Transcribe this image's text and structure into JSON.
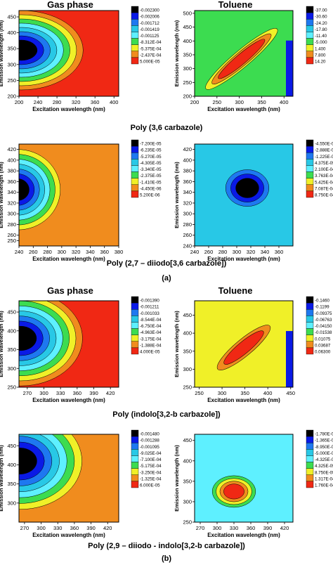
{
  "figure": {
    "headers": {
      "gas": "Gas phase",
      "toluene": "Toluene"
    },
    "captions": [
      "Poly (3,6 carbazole)",
      "Poly (2,7 – diiodo[3,6 carbazole])",
      "Poly (indolo[3,2-b carbazole])",
      "Poly (2,9 – diiodo - indolo[3,2-b carbazole])"
    ],
    "part_labels": [
      "(a)",
      "(b)"
    ],
    "xlabel": "Excitation wavelength (nm)",
    "ylabel": "Emission wavelength (nm)"
  },
  "chart_data": [
    {
      "type": "heatmap",
      "panel": "Poly (3,6 carbazole) – Gas phase",
      "xlabel": "Excitation wavelength (nm)",
      "ylabel": "Emission wavelength (nm)",
      "xlim": [
        200,
        410
      ],
      "ylim": [
        200,
        470
      ],
      "xticks": [
        200,
        240,
        280,
        320,
        360,
        400
      ],
      "yticks": [
        200,
        250,
        300,
        350,
        400,
        450
      ],
      "colorbar_levels": [
        "-0.002300",
        "-0.002006",
        "-0.001712",
        "-0.001419",
        "-0.001125",
        "-8.312E-04",
        "-5.375E-04",
        "-2.437E-04",
        "5.000E-05"
      ],
      "background_level": "5.000E-05",
      "feature": {
        "kind": "left-lobe",
        "center": [
          205,
          345
        ],
        "rx": 130,
        "ry": 125,
        "min_level": "-0.002300"
      }
    },
    {
      "type": "heatmap",
      "panel": "Poly (3,6 carbazole) – Toluene",
      "xlabel": "Excitation wavelength (nm)",
      "ylabel": "Emission wavelength (nm)",
      "xlim": [
        200,
        420
      ],
      "ylim": [
        200,
        510
      ],
      "xticks": [
        200,
        250,
        300,
        350,
        400
      ],
      "yticks": [
        200,
        250,
        300,
        350,
        400,
        450,
        500
      ],
      "colorbar_levels": [
        "-37.00",
        "-30.60",
        "-24.20",
        "-17.80",
        "-11.40",
        "-5.000",
        "1.400",
        "7.800",
        "14.20"
      ],
      "background_level": "-5.000",
      "feature": {
        "kind": "diagonal-ridge",
        "from": [
          235,
          240
        ],
        "to": [
          375,
          430
        ],
        "peak_level": "14.20"
      }
    },
    {
      "type": "heatmap",
      "panel": "Poly (2,7 – diiodo[3,6 carbazole]) – Gas phase",
      "xlabel": "Excitation wavelength (nm)",
      "ylabel": "Emission wavelength (nm)",
      "xlim": [
        240,
        380
      ],
      "ylim": [
        240,
        430
      ],
      "xticks": [
        240,
        260,
        280,
        300,
        320,
        340,
        360,
        380
      ],
      "yticks": [
        250,
        260,
        280,
        300,
        320,
        340,
        360,
        380,
        400,
        420
      ],
      "colorbar_levels": [
        "-7.200E-05",
        "-6.235E-05",
        "-5.270E-05",
        "-4.305E-05",
        "-3.340E-05",
        "-2.375E-05",
        "-1.410E-05",
        "-4.450E-06",
        "5.200E-06"
      ],
      "background_level": "-4.450E-06",
      "feature": {
        "kind": "left-lobe",
        "center": [
          238,
          345
        ],
        "rx": 60,
        "ry": 75,
        "min_level": "-7.200E-05"
      }
    },
    {
      "type": "heatmap",
      "panel": "Poly (2,7 – diiodo[3,6 carbazole]) – Toluene",
      "xlabel": "Excitation wavelength (nm)",
      "ylabel": "Emission wavelength (nm)",
      "xlim": [
        240,
        380
      ],
      "ylim": [
        240,
        430
      ],
      "xticks": [
        240,
        260,
        280,
        300,
        320,
        340,
        360
      ],
      "yticks": [
        240,
        260,
        280,
        300,
        320,
        340,
        360,
        380,
        400,
        420
      ],
      "colorbar_levels": [
        "-4.550E-04",
        "-2.888E-04",
        "-1.225E-04",
        "4.375E-05",
        "2.100E-04",
        "3.763E-04",
        "5.425E-04",
        "7.087E-04",
        "8.750E-04"
      ],
      "background_level": "4.375E-05",
      "feature": {
        "kind": "pocket",
        "center": [
          315,
          348
        ],
        "min_level": "-4.550E-04"
      }
    },
    {
      "type": "heatmap",
      "panel": "Poly (indolo[3,2-b carbazole]) – Gas phase",
      "xlabel": "Excitation wavelength (nm)",
      "ylabel": "Emission wavelength (nm)",
      "xlim": [
        255,
        435
      ],
      "ylim": [
        250,
        480
      ],
      "xticks": [
        270,
        300,
        330,
        360,
        390,
        420
      ],
      "yticks": [
        250,
        300,
        350,
        400,
        450
      ],
      "colorbar_levels": [
        "-0.001390",
        "-0.001211",
        "-0.001033",
        "-8.544E-04",
        "-6.750E-04",
        "-4.963E-04",
        "-3.175E-04",
        "-1.388E-04",
        "4.000E-05"
      ],
      "background_level": "4.000E-05",
      "feature": {
        "kind": "left-lobe",
        "center": [
          258,
          380
        ],
        "min_level": "-0.001390"
      }
    },
    {
      "type": "heatmap",
      "panel": "Poly (indolo[3,2-b carbazole]) – Toluene",
      "xlabel": "Excitation wavelength (nm)",
      "ylabel": "Emission wavelength (nm)",
      "xlim": [
        240,
        455
      ],
      "ylim": [
        250,
        490
      ],
      "xticks": [
        250,
        300,
        350,
        400,
        450
      ],
      "yticks": [
        250,
        300,
        350,
        400,
        450
      ],
      "colorbar_levels": [
        "-0.1460",
        "-0.1199",
        "-0.09375",
        "-0.06763",
        "-0.04150",
        "-0.01538",
        "0.01075",
        "0.03687",
        "0.06300"
      ],
      "background_level": "0.01075",
      "feature": {
        "kind": "diagonal-ridge",
        "from": [
          300,
          310
        ],
        "to": [
          395,
          410
        ],
        "peak_level": "0.06300"
      }
    },
    {
      "type": "heatmap",
      "panel": "Poly (2,9 – diiodo - indolo[3,2-b carbazole]) – Gas phase",
      "xlabel": "Excitation wavelength (nm)",
      "ylabel": "Emission wavelength (nm)",
      "xlim": [
        260,
        440
      ],
      "ylim": [
        250,
        480
      ],
      "xticks": [
        270,
        300,
        330,
        360,
        390,
        420
      ],
      "yticks": [
        300,
        350,
        400,
        450
      ],
      "colorbar_levels": [
        "-0.001480",
        "-0.001288",
        "-0.001095",
        "-9.025E-04",
        "-7.100E-04",
        "-5.175E-04",
        "-3.250E-04",
        "-1.325E-04",
        "6.000E-05"
      ],
      "background_level": "-1.325E-04",
      "feature": {
        "kind": "left-lobe",
        "center": [
          262,
          410
        ],
        "min_level": "-0.001480"
      }
    },
    {
      "type": "heatmap",
      "panel": "Poly (2,9 – diiodo - indolo[3,2-b carbazole]) – Toluene",
      "xlabel": "Excitation wavelength (nm)",
      "ylabel": "Emission wavelength (nm)",
      "xlim": [
        260,
        435
      ],
      "ylim": [
        250,
        465
      ],
      "xticks": [
        270,
        300,
        330,
        360,
        390,
        420
      ],
      "yticks": [
        250,
        300,
        350,
        400,
        450
      ],
      "colorbar_levels": [
        "-1.780E-04",
        "-1.365E-04",
        "-8.950E-05",
        "-5.000E-05",
        "-4.325E-05",
        "4.325E-05",
        "8.750E-05",
        "1.317E-04",
        "1.760E-04"
      ],
      "background_level": "-4.325E-05",
      "feature": {
        "kind": "pocket",
        "center": [
          330,
          325
        ],
        "peak_level": "1.760E-04"
      }
    }
  ],
  "palette": [
    "#000000",
    "#0a1ae6",
    "#1e78f0",
    "#28c8e6",
    "#5ef0ff",
    "#3cdc50",
    "#f0f028",
    "#f08c1e",
    "#f02814"
  ]
}
